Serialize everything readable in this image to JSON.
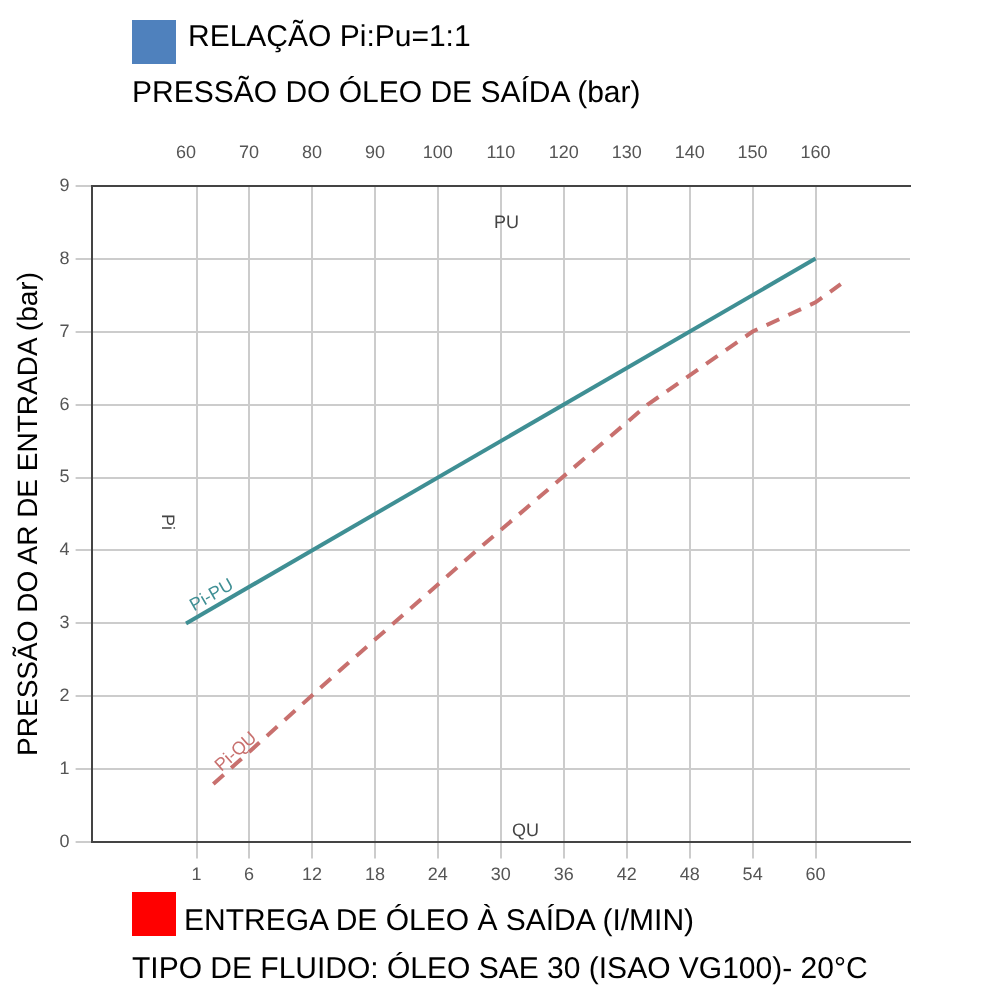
{
  "chart_data": {
    "type": "line",
    "title": "RELAÇÃO Pi:Pu=1:1",
    "x2label": "PRESSÃO DO ÓLEO DE SAÍDA (bar)",
    "xlabel": "ENTREGA DE ÓLEO À SAÍDA (I/MIN)",
    "ylabel": "PRESSÃO DO AR DE ENTRADA (bar)",
    "annotations": [
      "PU",
      "QU",
      "Pi",
      "TIPO DE FLUIDO: ÓLEO SAE 30 (ISAO VG100)- 20°C"
    ],
    "xlim": [
      -9,
      69
    ],
    "xticks": [
      1,
      6,
      12,
      18,
      24,
      30,
      36,
      42,
      48,
      54,
      60
    ],
    "x2lim": [
      45,
      175
    ],
    "x2ticks": [
      60,
      70,
      80,
      90,
      100,
      110,
      120,
      130,
      140,
      150,
      160
    ],
    "ylim": [
      0,
      9
    ],
    "yticks": [
      0,
      1,
      2,
      3,
      4,
      5,
      6,
      7,
      8,
      9
    ],
    "grid": true,
    "legend": false,
    "marker": "none",
    "series": [
      {
        "name": "Pi-PU",
        "color": "#3f8f94",
        "axis": "x2",
        "line_style": "solid",
        "x": [
          60,
          160
        ],
        "values": [
          3,
          8
        ]
      },
      {
        "name": "Pi-QU",
        "color": "#c8706e",
        "line_style": "dashed",
        "x": [
          2.6,
          15,
          27.7,
          44,
          54,
          60,
          62.4
        ],
        "values": [
          0.8,
          2.4,
          4.0,
          6.0,
          7.0,
          7.4,
          7.65
        ]
      }
    ]
  }
}
